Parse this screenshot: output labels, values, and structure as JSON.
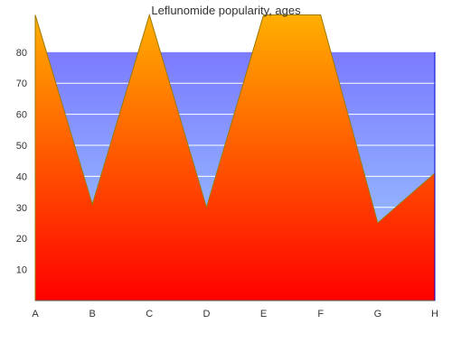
{
  "chart_data": {
    "type": "area",
    "title": "Leflunomide popularity, ages",
    "x": [
      "A",
      "B",
      "C",
      "D",
      "E",
      "F",
      "G",
      "H"
    ],
    "ylim": [
      0,
      80
    ],
    "yticks": [
      10,
      20,
      30,
      40,
      50,
      60,
      70,
      80
    ],
    "series": [
      {
        "values": [
          92,
          31,
          92,
          30,
          92,
          92,
          25,
          41
        ]
      }
    ],
    "grid": true,
    "legend": "none",
    "colors": {
      "fill_top": "#ffb800",
      "fill_bottom": "#ff0000",
      "bg_top": "#7b7bff",
      "bg_bottom": "#9fd0ff",
      "grid": "#ffffff",
      "edge": "#9a7a00",
      "axis_right": "#0000cc"
    }
  }
}
